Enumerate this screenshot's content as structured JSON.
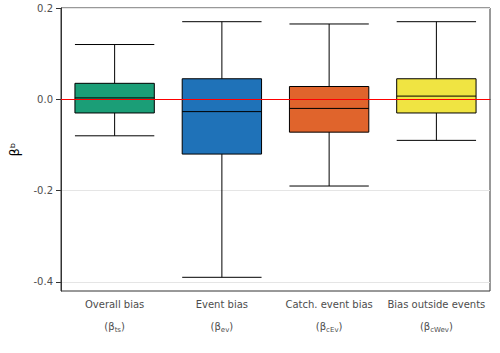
{
  "chart_data": {
    "type": "boxplot",
    "y_label": "βᵇ",
    "categories": [
      "Overall bias",
      "Event bias",
      "Catch. event bias",
      "Bias outside events"
    ],
    "category_symbols": [
      "(βts)",
      "(βev)",
      "(βcEv)",
      "(βcWev)"
    ],
    "series": [
      {
        "name": "β",
        "values": [
          {
            "min": -0.08,
            "q1": -0.03,
            "median": 0.003,
            "q3": 0.035,
            "max": 0.12
          },
          {
            "min": -0.39,
            "q1": -0.12,
            "median": -0.027,
            "q3": 0.045,
            "max": 0.17
          },
          {
            "min": -0.19,
            "q1": -0.072,
            "median": -0.02,
            "q3": 0.028,
            "max": 0.165
          },
          {
            "min": -0.09,
            "q1": -0.03,
            "median": 0.007,
            "q3": 0.045,
            "max": 0.17
          }
        ]
      }
    ],
    "colors": [
      "#1b9e77",
      "#1f72b8",
      "#e0642c",
      "#f0e442"
    ],
    "reference_line": {
      "value": 0,
      "color": "#ff0000"
    },
    "ylim": [
      -0.42,
      0.2
    ],
    "yticks": [
      -0.4,
      -0.2,
      {
        "value": 0,
        "label": "0.0"
      },
      0.2
    ],
    "grid": true
  }
}
